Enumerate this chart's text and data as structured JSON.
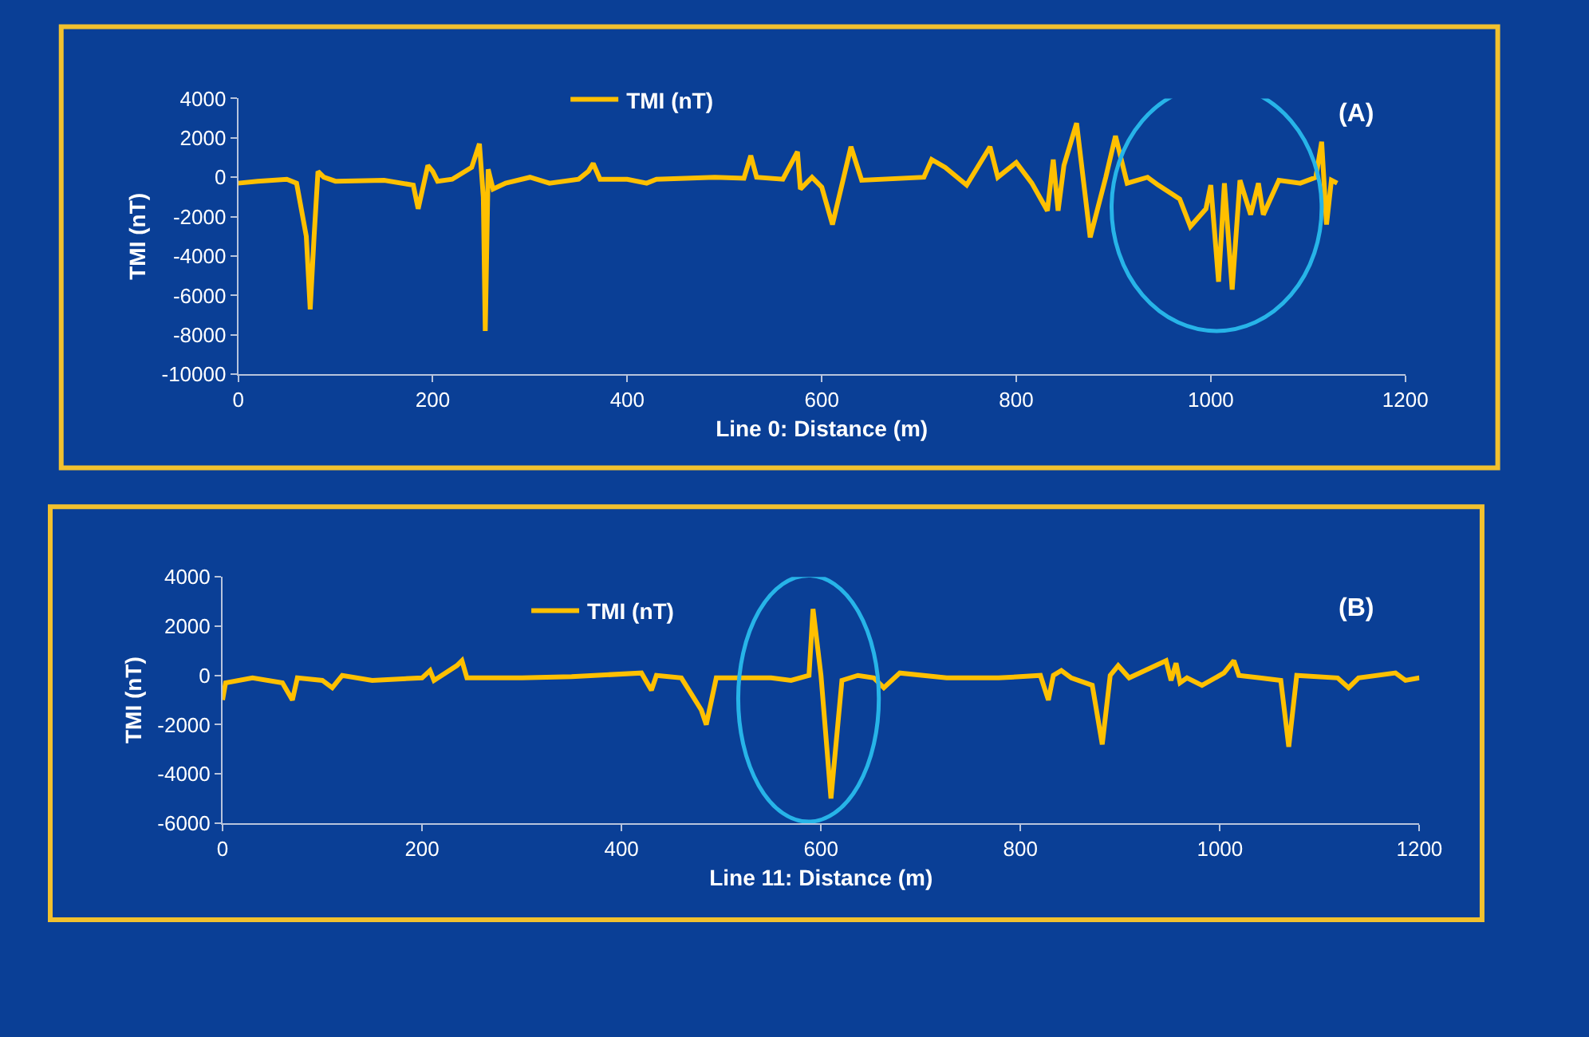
{
  "chart_data": [
    {
      "type": "line",
      "xlabel": "Line 0: Distance (m)",
      "ylabel": "TMI (nT)",
      "xlim": [
        0,
        1200
      ],
      "xticks": [
        0,
        200,
        400,
        600,
        800,
        1000,
        1200
      ],
      "ylim": [
        -10000,
        4000
      ],
      "yticks": [
        -10000,
        -8000,
        -6000,
        -4000,
        -2000,
        0,
        2000,
        4000
      ],
      "grid": false,
      "legend": "top",
      "annotations": [
        "(A)"
      ],
      "series": [
        {
          "name": "TMI (nT)",
          "color": "#ffc000",
          "x": [
            0,
            20,
            50,
            60,
            70,
            74,
            78,
            82,
            88,
            100,
            150,
            180,
            185,
            190,
            195,
            200,
            205,
            220,
            240,
            248,
            252,
            254,
            257,
            262,
            275,
            300,
            320,
            350,
            360,
            365,
            372,
            400,
            420,
            430,
            490,
            520,
            527,
            533,
            560,
            575,
            578,
            590,
            600,
            611,
            630,
            641,
            705,
            713,
            727,
            749,
            773,
            781,
            800,
            816,
            832,
            838,
            843,
            849,
            862,
            876,
            892,
            902,
            914,
            935,
            946,
            968,
            979,
            995,
            1000,
            1008,
            1014,
            1022,
            1030,
            1041,
            1049,
            1054,
            1070,
            1092,
            1108,
            1114,
            1119,
            1124,
            1130
          ],
          "values": [
            -300,
            -200,
            -100,
            -300,
            -3000,
            -6700,
            -3000,
            300,
            0,
            -200,
            -150,
            -400,
            -1600,
            -500,
            600,
            300,
            -200,
            -100,
            500,
            1700,
            -1000,
            -7800,
            400,
            -600,
            -300,
            0,
            -300,
            -100,
            300,
            700,
            -100,
            -100,
            -300,
            -100,
            0,
            -50,
            1100,
            0,
            -100,
            1300,
            -600,
            0,
            -500,
            -2400,
            1550,
            -150,
            0,
            900,
            500,
            -400,
            1550,
            0,
            750,
            -300,
            -1700,
            900,
            -1700,
            600,
            2750,
            -3050,
            0,
            2100,
            -300,
            0,
            -400,
            -1100,
            -2500,
            -1600,
            -400,
            -5300,
            -300,
            -5700,
            -150,
            -1900,
            -300,
            -1900,
            -150,
            -300,
            0,
            1800,
            -2400,
            -150,
            -300
          ]
        }
      ]
    },
    {
      "type": "line",
      "xlabel": "Line 11: Distance (m)",
      "ylabel": "TMI (nT)",
      "xlim": [
        0,
        1200
      ],
      "xticks": [
        0,
        200,
        400,
        600,
        800,
        1000,
        1200
      ],
      "ylim": [
        -6000,
        4000
      ],
      "yticks": [
        -6000,
        -4000,
        -2000,
        0,
        2000,
        4000
      ],
      "grid": false,
      "legend": "top",
      "annotations": [
        "(B)"
      ],
      "series": [
        {
          "name": "TMI (nT)",
          "color": "#ffc000",
          "x": [
            0,
            3,
            30,
            60,
            70,
            75,
            100,
            110,
            120,
            150,
            200,
            208,
            212,
            235,
            240,
            245,
            300,
            350,
            420,
            430,
            435,
            460,
            480,
            485,
            495,
            550,
            570,
            588,
            592,
            600,
            610,
            621,
            637,
            653,
            663,
            679,
            726,
            778,
            820,
            828,
            833,
            841,
            851,
            872,
            882,
            890,
            898,
            909,
            946,
            951,
            956,
            960,
            967,
            982,
            1004,
            1014,
            1019,
            1040,
            1061,
            1069,
            1077,
            1118,
            1129,
            1139,
            1176,
            1186,
            1200
          ],
          "values": [
            -1000,
            -300,
            -100,
            -300,
            -1000,
            -100,
            -200,
            -500,
            0,
            -200,
            -100,
            200,
            -200,
            400,
            600,
            -100,
            -100,
            -50,
            100,
            -600,
            0,
            -100,
            -1400,
            -2000,
            -100,
            -100,
            -200,
            0,
            2700,
            0,
            -5000,
            -200,
            0,
            -100,
            -500,
            100,
            -100,
            -100,
            0,
            -1000,
            0,
            200,
            -100,
            -400,
            -2800,
            0,
            400,
            -100,
            600,
            -200,
            500,
            -300,
            -100,
            -400,
            100,
            600,
            0,
            -100,
            -200,
            -2900,
            0,
            -100,
            -500,
            -100,
            100,
            -200,
            -100
          ]
        }
      ]
    }
  ]
}
